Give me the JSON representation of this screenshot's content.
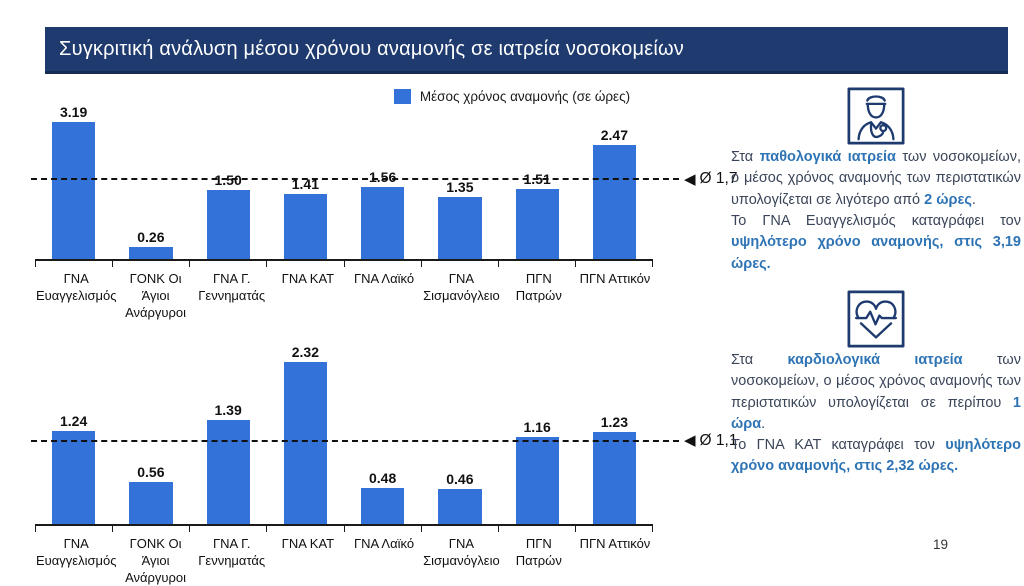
{
  "slide": {
    "title": "Συγκριτική ανάλυση μέσου χρόνου αναμονής σε ιατρεία νοσοκομείων",
    "page_number": "19"
  },
  "legend": {
    "label": "Μέσος χρόνος αναμονής (σε ώρες)"
  },
  "icons": {
    "triangle_left": "◀",
    "top_section_icon": "doctor-icon",
    "bottom_section_icon": "heart-pulse-icon"
  },
  "colors": {
    "title_bar_bg": "#1E3A6F",
    "bar_blue": "#3372D8",
    "highlight_blue": "#2E74B5",
    "body_text": "#3A4559"
  },
  "chart_data": [
    {
      "type": "bar",
      "name": "Μέσος χρόνος αναμονής - παθολογικά ιατρεία",
      "series_name": "Μέσος χρόνος αναμονής (σε ώρες)",
      "categories": [
        "ΓΝΑ Ευαγγελισμός",
        "ΓΟΝΚ Οι Άγιοι Ανάργυροι",
        "ΓΝΑ Γ. Γεννηματάς",
        "ΓΝΑ ΚΑΤ",
        "ΓΝΑ Λαϊκό",
        "ΓΝΑ Σισμανόγλειο",
        "ΠΓΝ Πατρών",
        "ΠΓΝ Αττικόν"
      ],
      "values": [
        3.19,
        0.26,
        1.5,
        1.41,
        1.56,
        1.35,
        1.51,
        2.47
      ],
      "value_labels": [
        "3.19",
        "0.26",
        "1.50",
        "1.41",
        "1.56",
        "1.35",
        "1.51",
        "2.47"
      ],
      "average": 1.7,
      "average_label": "Ø 1,7",
      "ylim": [
        0,
        3.35
      ],
      "grid": false,
      "legend_position": "top",
      "bar_color": "#3372D8"
    },
    {
      "type": "bar",
      "name": "Μέσος χρόνος αναμονής - καρδιολογικά ιατρεία",
      "series_name": "Μέσος χρόνος αναμονής (σε ώρες)",
      "categories": [
        "ΓΝΑ Ευαγγελισμός",
        "ΓΟΝΚ Οι Άγιοι Ανάργυροι",
        "ΓΝΑ Γ. Γεννηματάς",
        "ΓΝΑ ΚΑΤ",
        "ΓΝΑ Λαϊκό",
        "ΓΝΑ Σισμανόγλειο",
        "ΠΓΝ Πατρών",
        "ΠΓΝ Αττικόν"
      ],
      "values": [
        1.24,
        0.56,
        1.39,
        2.32,
        0.48,
        0.46,
        1.16,
        1.23
      ],
      "value_labels": [
        "1.24",
        "0.56",
        "1.39",
        "2.32",
        "0.48",
        "0.46",
        "1.16",
        "1.23"
      ],
      "average": 1.1,
      "average_label": "Ø 1,1",
      "ylim": [
        0,
        2.4
      ],
      "grid": false,
      "legend_position": "none",
      "bar_color": "#3372D8"
    }
  ],
  "panel": {
    "sections": [
      {
        "icon": "doctor-icon",
        "paragraphs": [
          {
            "segments": [
              {
                "t": "Στα ",
                "h": false
              },
              {
                "t": "παθολογικά ιατρεία",
                "h": true
              },
              {
                "t": " των νοσοκομείων, ο μέσος χρόνος αναμονής των περιστατικών υπολογίζεται σε λιγότερο από ",
                "h": false
              },
              {
                "t": "2 ώρες",
                "h": true
              },
              {
                "t": ".",
                "h": false
              }
            ]
          },
          {
            "segments": [
              {
                "t": "Το ΓΝΑ Ευαγγελισμός καταγράφει τον ",
                "h": false
              },
              {
                "t": "υψηλότερο χρόνο αναμονής, στις 3,19 ώρες.",
                "h": true
              }
            ]
          }
        ]
      },
      {
        "icon": "heart-pulse-icon",
        "paragraphs": [
          {
            "segments": [
              {
                "t": "Στα ",
                "h": false
              },
              {
                "t": "καρδιολογικά ιατρεία",
                "h": true
              },
              {
                "t": " των νοσοκομείων, ο μέσος χρόνος αναμονής των περιστατικών υπολογίζεται σε περίπου ",
                "h": false
              },
              {
                "t": "1 ώρα",
                "h": true
              },
              {
                "t": ".",
                "h": false
              }
            ]
          },
          {
            "segments": [
              {
                "t": "Το ΓΝΑ ΚΑΤ καταγράφει τον ",
                "h": false
              },
              {
                "t": "υψηλότερο χρόνο αναμονής, στις 2,32 ώρες.",
                "h": true
              }
            ]
          }
        ]
      }
    ]
  }
}
